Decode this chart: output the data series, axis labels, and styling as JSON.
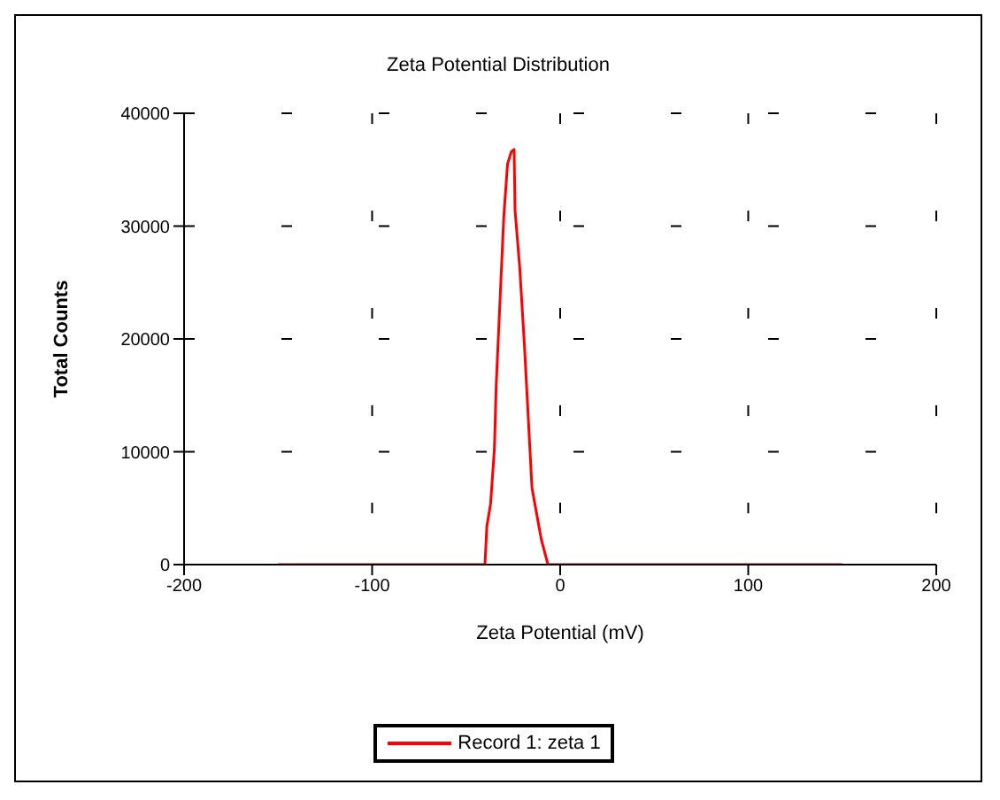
{
  "chart_data": {
    "type": "line",
    "title": "Zeta Potential Distribution",
    "xlabel": "Zeta Potential (mV)",
    "ylabel": "Total Counts",
    "xlim": [
      -200,
      200
    ],
    "xticks": [
      -200,
      -100,
      0,
      100,
      200
    ],
    "ylim": [
      0,
      40000
    ],
    "yticks": [
      0,
      10000,
      20000,
      30000,
      40000
    ],
    "grid": true,
    "legend": "bottom",
    "marker": "none",
    "line_style": "solid",
    "series": [
      {
        "name": "Record 1: zeta 1",
        "color": "#ff0000",
        "x": [
          -150,
          -40,
          -39,
          -37,
          -35,
          -34,
          -32,
          -30,
          -28,
          -26,
          -24.5,
          -24,
          -21.5,
          -19,
          -17,
          -15,
          -12.5,
          -10,
          -6.5,
          150
        ],
        "values": [
          0,
          0,
          3400,
          5400,
          10200,
          16000,
          23400,
          30800,
          35500,
          36600,
          36800,
          31400,
          26300,
          19400,
          13100,
          6800,
          4500,
          2200,
          0,
          0
        ]
      }
    ]
  }
}
